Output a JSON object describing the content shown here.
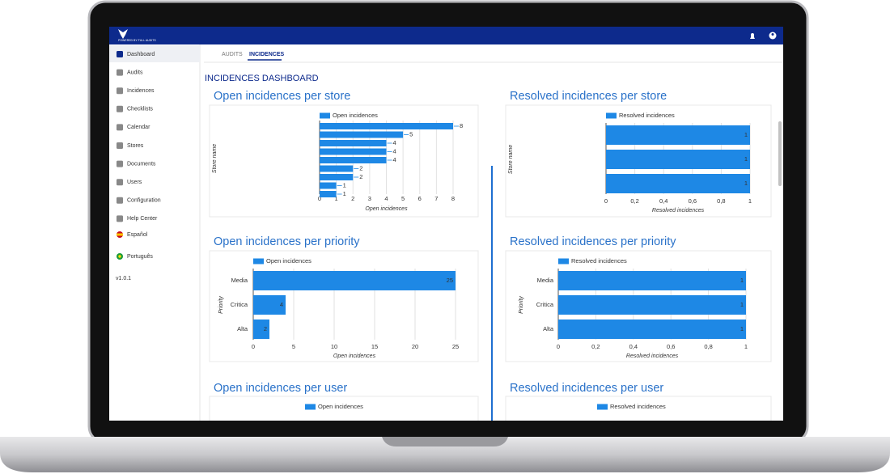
{
  "top_bar": {
    "brand": "POWERED BY FULL AUDITS"
  },
  "sidebar": {
    "items": [
      "Dashboard",
      "Audits",
      "Incidences",
      "Checklists",
      "Calendar",
      "Stores",
      "Documents",
      "Users",
      "Configuration",
      "Help Center",
      "Español",
      "Português"
    ],
    "version": "v1.0.1"
  },
  "tabs": [
    "AUDITS",
    "INCIDENCES"
  ],
  "page_title": "INCIDENCES DASHBOARD",
  "charts": [
    {
      "type": "bar",
      "title": "Open incidences per store",
      "legend": "Open incidences",
      "color": "#1e88e5",
      "x_label": "Open incidences",
      "y_label": "Store name",
      "categories": [
        null,
        null,
        null,
        null,
        null,
        null,
        null,
        null,
        null
      ],
      "values": [
        8,
        5,
        4,
        4,
        4,
        2,
        2,
        1,
        1
      ],
      "xlim": [
        0,
        8
      ],
      "xticks": [
        0,
        1,
        2,
        3,
        4,
        5,
        6,
        7,
        8
      ],
      "grid": true
    },
    {
      "type": "bar",
      "title": "Resolved incidences per store",
      "legend": "Resolved incidences",
      "color": "#1e88e5",
      "x_label": "Resolved incidences",
      "y_label": "Store name",
      "categories": [
        null,
        null,
        null
      ],
      "values": [
        1,
        1,
        1
      ],
      "xlim": [
        0,
        1
      ],
      "xticks": [
        0,
        {
          "value": 0.2,
          "label": "0,2"
        },
        {
          "value": 0.4,
          "label": "0,4"
        },
        {
          "value": 0.6,
          "label": "0,6"
        },
        {
          "value": 0.8,
          "label": "0,8"
        },
        1
      ],
      "grid": true
    },
    {
      "type": "bar",
      "title": "Open incidences per priority",
      "legend": "Open incidences",
      "color": "#1e88e5",
      "x_label": "Open incidences",
      "y_label": "Priority",
      "categories": [
        "Media",
        "Critica",
        "Alta"
      ],
      "values": [
        25,
        4,
        2
      ],
      "xlim": [
        0,
        25
      ],
      "xticks": [
        0,
        5,
        10,
        15,
        20,
        25
      ],
      "grid": true
    },
    {
      "type": "bar",
      "title": "Resolved incidences per priority",
      "legend": "Resolved incidences",
      "color": "#1e88e5",
      "x_label": "Resolved incidences",
      "y_label": "Priority",
      "categories": [
        "Media",
        "Critica",
        "Alta"
      ],
      "values": [
        1,
        1,
        1
      ],
      "xlim": [
        0,
        1
      ],
      "xticks": [
        0,
        {
          "value": 0.2,
          "label": "0,2"
        },
        {
          "value": 0.4,
          "label": "0,4"
        },
        {
          "value": 0.6,
          "label": "0,6"
        },
        {
          "value": 0.8,
          "label": "0,8"
        },
        1
      ],
      "grid": true
    },
    {
      "type": "bar",
      "title": "Open incidences per user",
      "legend": "Open incidences",
      "color": "#1e88e5"
    },
    {
      "type": "bar",
      "title": "Resolved incidences per user",
      "legend": "Resolved incidences",
      "color": "#1e88e5"
    }
  ]
}
